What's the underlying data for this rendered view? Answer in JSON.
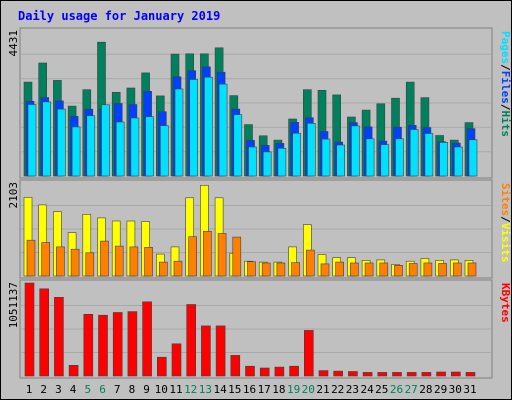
{
  "title": "Daily usage for January 2019",
  "colors": {
    "background": "#C0C0C0",
    "title": "#0000FF",
    "hits": "#00805C",
    "files": "#0040FF",
    "pages": "#00E0FF",
    "visits": "#FFFF00",
    "sites": "#FF8000",
    "kbytes": "#FF0000",
    "weekend_label": "#00805C",
    "weekday_label": "#000000"
  },
  "chart_data": [
    {
      "type": "bar",
      "name": "hits-files-pages",
      "categories": [
        "1",
        "2",
        "3",
        "4",
        "5",
        "6",
        "7",
        "8",
        "9",
        "10",
        "11",
        "12",
        "13",
        "14",
        "15",
        "16",
        "17",
        "18",
        "19",
        "20",
        "21",
        "22",
        "23",
        "24",
        "25",
        "26",
        "27",
        "28",
        "29",
        "30",
        "31"
      ],
      "weekend_days": [
        "5",
        "6",
        "12",
        "13",
        "19",
        "20",
        "26",
        "27"
      ],
      "ymax_label": "4431",
      "ylim": [
        0,
        4431
      ],
      "right_label": [
        "Pages",
        "Files",
        "Hits"
      ],
      "series": [
        {
          "name": "Hits",
          "color": "#00805C",
          "values": [
            2850,
            3430,
            2900,
            2120,
            2620,
            4060,
            2540,
            2670,
            3130,
            2430,
            3700,
            3710,
            3710,
            3890,
            2440,
            1560,
            1220,
            1090,
            1730,
            2620,
            2600,
            2460,
            1790,
            2000,
            2190,
            2360,
            2850,
            2380,
            1230,
            1090,
            1620
          ]
        },
        {
          "name": "Files",
          "color": "#0040FF",
          "values": [
            2270,
            2380,
            2280,
            1810,
            2030,
            2040,
            2200,
            2170,
            2570,
            1950,
            3010,
            3200,
            3310,
            3150,
            2030,
            1080,
            930,
            990,
            1630,
            1770,
            1350,
            1030,
            1620,
            1490,
            1060,
            1480,
            1540,
            1470,
            1040,
            1000,
            1440
          ]
        },
        {
          "name": "Pages",
          "color": "#00E0FF",
          "values": [
            2170,
            2250,
            2030,
            1490,
            1830,
            2160,
            1640,
            1760,
            1800,
            1530,
            2640,
            2930,
            3000,
            2790,
            1860,
            880,
            730,
            840,
            1300,
            1600,
            1120,
            940,
            1520,
            1130,
            950,
            1130,
            1410,
            1290,
            1020,
            880,
            1100
          ]
        }
      ]
    },
    {
      "type": "bar",
      "name": "sites-visits",
      "categories": [
        "1",
        "2",
        "3",
        "4",
        "5",
        "6",
        "7",
        "8",
        "9",
        "10",
        "11",
        "12",
        "13",
        "14",
        "15",
        "16",
        "17",
        "18",
        "19",
        "20",
        "21",
        "22",
        "23",
        "24",
        "25",
        "26",
        "27",
        "28",
        "29",
        "30",
        "31"
      ],
      "ymax_label": "2103",
      "ylim": [
        0,
        2103
      ],
      "right_label": [
        "Sites",
        "Visits"
      ],
      "series": [
        {
          "name": "Visits",
          "color": "#FFFF00",
          "values": [
            1760,
            1590,
            1440,
            970,
            1380,
            1300,
            1230,
            1230,
            1220,
            490,
            650,
            1750,
            2030,
            1750,
            510,
            330,
            310,
            310,
            650,
            1150,
            480,
            410,
            410,
            350,
            360,
            260,
            330,
            390,
            350,
            360,
            350
          ]
        },
        {
          "name": "Sites",
          "color": "#FF8000",
          "values": [
            800,
            750,
            650,
            600,
            520,
            780,
            670,
            650,
            640,
            310,
            330,
            880,
            1000,
            950,
            870,
            320,
            290,
            290,
            300,
            580,
            270,
            310,
            290,
            290,
            290,
            240,
            280,
            290,
            280,
            290,
            290
          ]
        }
      ]
    },
    {
      "type": "bar",
      "name": "kbytes",
      "categories": [
        "1",
        "2",
        "3",
        "4",
        "5",
        "6",
        "7",
        "8",
        "9",
        "10",
        "11",
        "12",
        "13",
        "14",
        "15",
        "16",
        "17",
        "18",
        "19",
        "20",
        "21",
        "22",
        "23",
        "24",
        "25",
        "26",
        "27",
        "28",
        "29",
        "30",
        "31"
      ],
      "ymax_label": "1051137",
      "ylim": [
        0,
        1051137
      ],
      "right_label": [
        "KBytes"
      ],
      "series": [
        {
          "name": "KBytes",
          "color": "#FF0000",
          "values": [
            1040000,
            975000,
            880000,
            120000,
            690000,
            680000,
            710000,
            720000,
            830000,
            210000,
            360000,
            800000,
            560000,
            560000,
            230000,
            110000,
            90000,
            100000,
            110000,
            510000,
            60000,
            55000,
            50000,
            40000,
            40000,
            40000,
            40000,
            40000,
            45000,
            45000,
            40000
          ]
        }
      ]
    }
  ]
}
